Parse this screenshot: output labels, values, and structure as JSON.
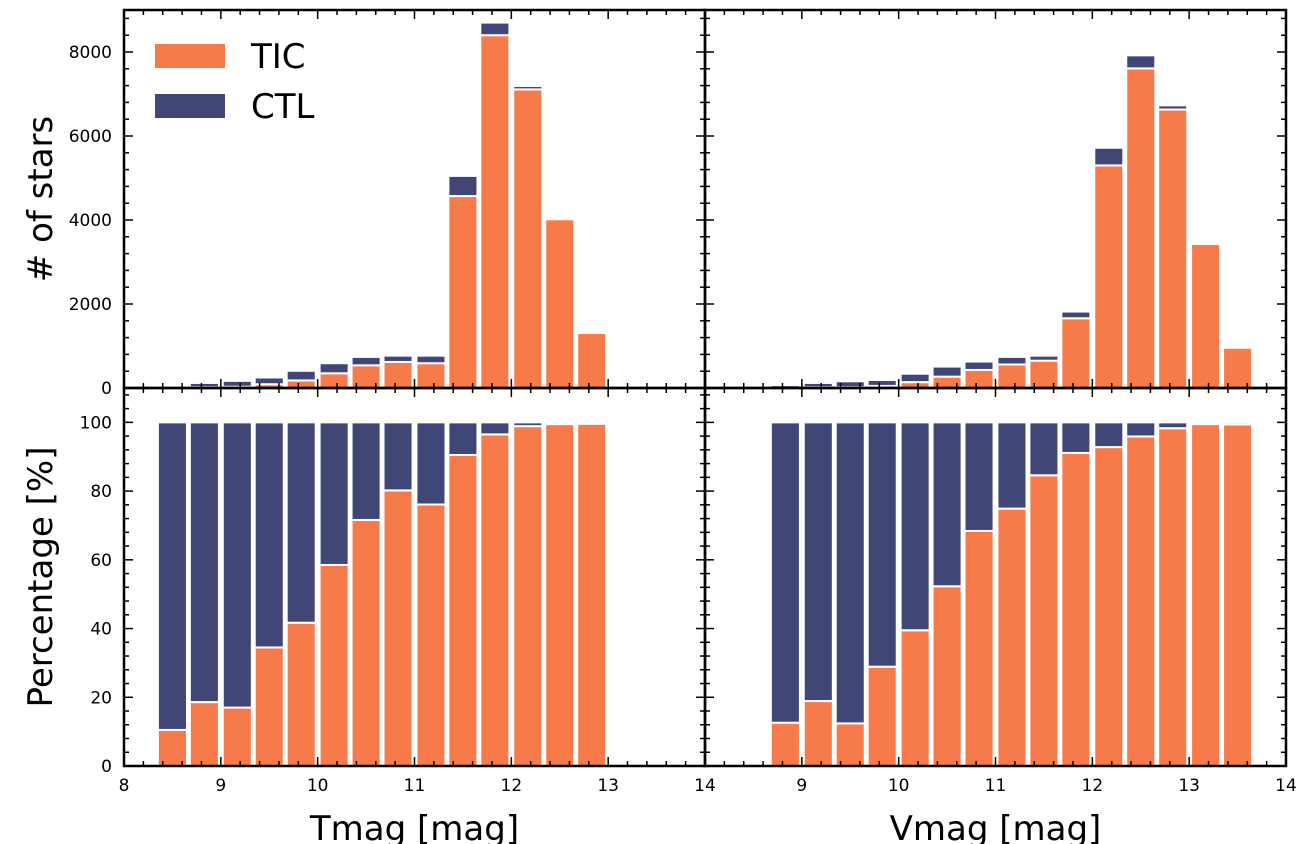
{
  "figure": {
    "ylabel_top": "# of stars",
    "ylabel_bottom": "Percentage [%]",
    "legend": [
      {
        "label": "TIC",
        "color": "#f77b4a"
      },
      {
        "label": "CTL",
        "color": "#404676"
      }
    ]
  },
  "chart_data": [
    {
      "id": "counts-tmag",
      "type": "bar",
      "stacked": true,
      "xlabel": "",
      "ylabel": "# of stars",
      "xlim": [
        8,
        14
      ],
      "ylim": [
        0,
        9000
      ],
      "xticks": [
        "8",
        "9",
        "10",
        "11",
        "12",
        "13",
        "14"
      ],
      "yticks": [
        "0",
        "2000",
        "4000",
        "6000",
        "8000"
      ],
      "x": [
        8.5,
        8.83,
        9.17,
        9.5,
        9.83,
        10.17,
        10.5,
        10.83,
        11.17,
        11.5,
        11.83,
        12.17,
        12.5,
        12.83
      ],
      "series": [
        {
          "name": "TIC",
          "color": "#f77b4a",
          "values": [
            10,
            20,
            30,
            90,
            180,
            350,
            540,
            620,
            590,
            4570,
            8400,
            7110,
            4020,
            1310
          ]
        },
        {
          "name": "CTL",
          "color": "#404676",
          "values": [
            20,
            100,
            140,
            160,
            230,
            240,
            200,
            150,
            180,
            480,
            300,
            80,
            20,
            10
          ]
        }
      ],
      "legend_position": "top-left"
    },
    {
      "id": "counts-vmag",
      "type": "bar",
      "stacked": true,
      "xlabel": "",
      "ylabel": "",
      "xlim": [
        8,
        14
      ],
      "ylim": [
        0,
        9000
      ],
      "xticks": [
        "8",
        "9",
        "10",
        "11",
        "12",
        "13",
        "14"
      ],
      "yticks": [],
      "x": [
        8.83,
        9.17,
        9.5,
        9.83,
        10.17,
        10.5,
        10.83,
        11.17,
        11.5,
        11.83,
        12.17,
        12.5,
        12.83,
        13.17,
        13.5
      ],
      "series": [
        {
          "name": "TIC",
          "color": "#f77b4a",
          "values": [
            10,
            20,
            20,
            50,
            140,
            270,
            430,
            560,
            650,
            1660,
            5300,
            7610,
            6630,
            3430,
            960
          ]
        },
        {
          "name": "CTL",
          "color": "#404676",
          "values": [
            60,
            100,
            140,
            140,
            200,
            240,
            200,
            180,
            120,
            160,
            420,
            310,
            100,
            20,
            10
          ]
        }
      ]
    },
    {
      "id": "percent-tmag",
      "type": "bar",
      "stacked": true,
      "xlabel": "Tmag [mag]",
      "ylabel": "Percentage [%]",
      "xlim": [
        8,
        14
      ],
      "ylim": [
        0,
        110
      ],
      "xticks": [
        "8",
        "9",
        "10",
        "11",
        "12",
        "13",
        "14"
      ],
      "yticks": [
        "0",
        "20",
        "40",
        "60",
        "80",
        "100"
      ],
      "x": [
        8.5,
        8.83,
        9.17,
        9.5,
        9.83,
        10.17,
        10.5,
        10.83,
        11.17,
        11.5,
        11.83,
        12.17,
        12.5,
        12.83
      ],
      "series": [
        {
          "name": "TIC",
          "color": "#f77b4a",
          "values": [
            10.5,
            18.6,
            17.0,
            34.5,
            41.7,
            58.5,
            71.6,
            80.2,
            76.1,
            90.5,
            96.5,
            98.9,
            99.5,
            99.6
          ]
        },
        {
          "name": "CTL",
          "color": "#404676",
          "values": [
            89.5,
            81.4,
            83.0,
            65.5,
            58.3,
            41.5,
            28.4,
            19.8,
            23.9,
            9.5,
            3.5,
            1.1,
            0.5,
            0.4
          ]
        }
      ]
    },
    {
      "id": "percent-vmag",
      "type": "bar",
      "stacked": true,
      "xlabel": "Vmag [mag]",
      "ylabel": "",
      "xlim": [
        8,
        14
      ],
      "ylim": [
        0,
        110
      ],
      "xticks": [
        "8",
        "9",
        "10",
        "11",
        "12",
        "13",
        "14"
      ],
      "yticks": [],
      "x": [
        8.83,
        9.17,
        9.5,
        9.83,
        10.17,
        10.5,
        10.83,
        11.17,
        11.5,
        11.83,
        12.17,
        12.5,
        12.83,
        13.17,
        13.5
      ],
      "series": [
        {
          "name": "TIC",
          "color": "#f77b4a",
          "values": [
            12.6,
            18.9,
            12.4,
            28.9,
            39.5,
            52.3,
            68.4,
            74.9,
            84.6,
            91.1,
            92.8,
            95.9,
            98.3,
            99.5,
            99.4
          ]
        },
        {
          "name": "CTL",
          "color": "#404676",
          "values": [
            87.4,
            81.1,
            87.6,
            71.1,
            60.5,
            47.7,
            31.6,
            25.1,
            15.4,
            8.9,
            7.2,
            4.1,
            1.7,
            0.5,
            0.6
          ]
        }
      ]
    }
  ]
}
